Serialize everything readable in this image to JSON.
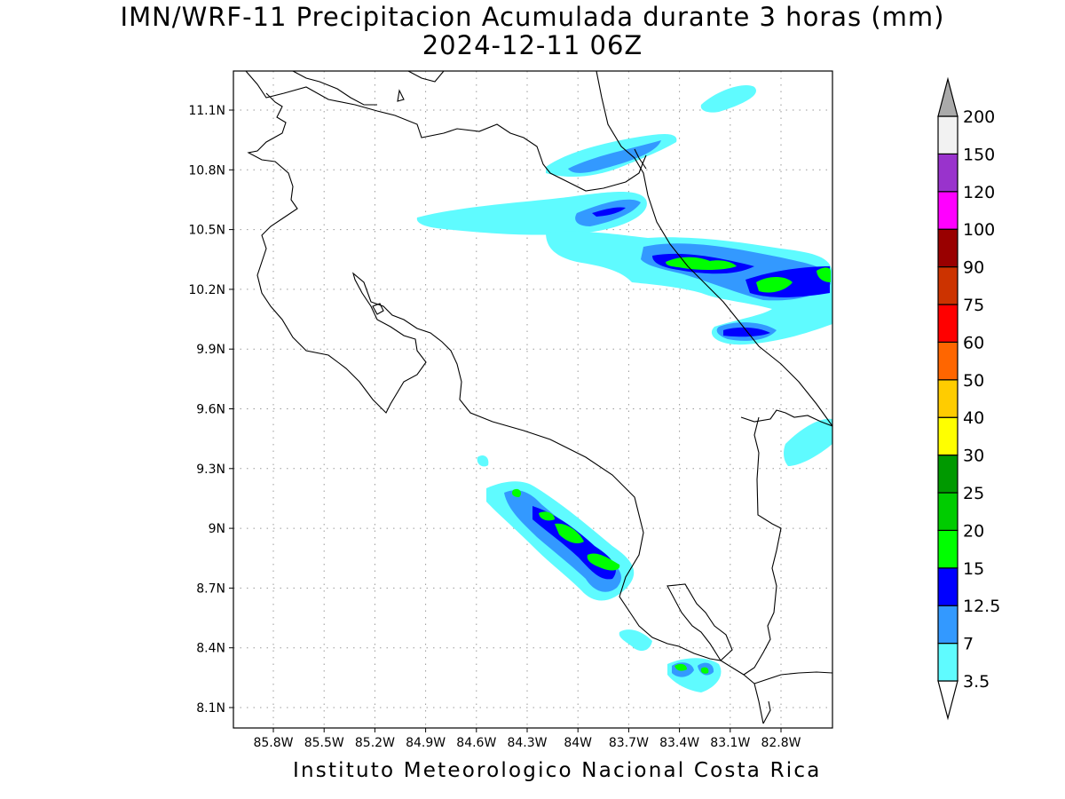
{
  "title": {
    "line1": "IMN/WRF-11 Precipitacion Acumulada durante 3 horas (mm)",
    "line2": "2024-12-11 06Z"
  },
  "footer": "Instituto Meteorologico Nacional Costa Rica",
  "axes": {
    "lon_ticks": [
      "85.8W",
      "85.5W",
      "85.2W",
      "84.9W",
      "84.6W",
      "84.3W",
      "84W",
      "83.7W",
      "83.4W",
      "83.1W",
      "82.8W"
    ],
    "lat_ticks": [
      "11.1N",
      "10.8N",
      "10.5N",
      "10.2N",
      "9.9N",
      "9.6N",
      "9.3N",
      "9N",
      "8.7N",
      "8.4N",
      "8.1N"
    ],
    "grid": "dotted"
  },
  "colorbar": {
    "labels": [
      "3.5",
      "7",
      "12.5",
      "15",
      "20",
      "25",
      "30",
      "40",
      "50",
      "60",
      "75",
      "90",
      "100",
      "120",
      "150",
      "200"
    ],
    "colors": [
      "#ffffff",
      "#5ffbff",
      "#3399ff",
      "#0000ff",
      "#00ff00",
      "#00cc00",
      "#009900",
      "#ffff00",
      "#ffcc00",
      "#ff6600",
      "#ff0000",
      "#cc3300",
      "#990000",
      "#ff00ff",
      "#9933cc",
      "#f2f2f2",
      "#aaaaaa"
    ]
  }
}
